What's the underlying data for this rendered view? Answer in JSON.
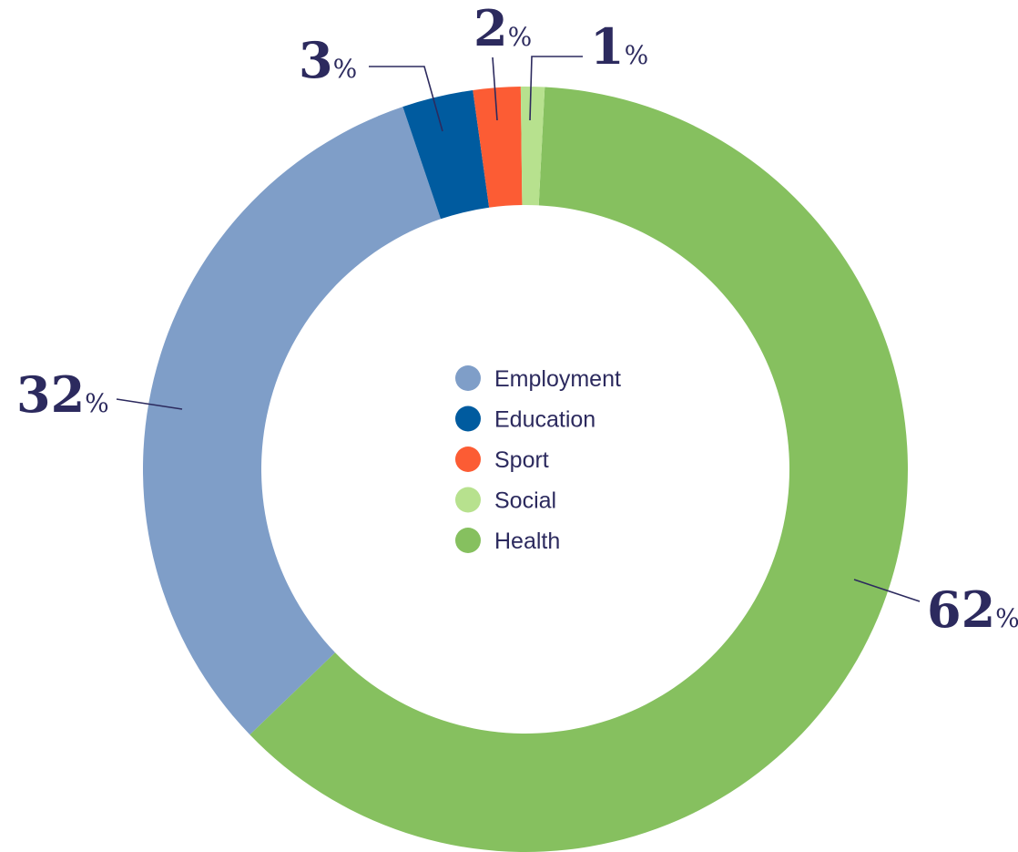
{
  "chart_data": {
    "type": "pie",
    "variant": "donut",
    "categories": [
      "Employment",
      "Education",
      "Sport",
      "Social",
      "Health"
    ],
    "values": [
      32,
      3,
      2,
      1,
      62
    ],
    "value_labels": [
      "32",
      "3",
      "2",
      "1",
      "62"
    ],
    "unit": "%",
    "colors": [
      "#7f9ec8",
      "#005b9f",
      "#fc5c34",
      "#b7e18e",
      "#86c05f"
    ],
    "legend_placement": "center",
    "text_color": "#2c2a5e",
    "title": ""
  }
}
